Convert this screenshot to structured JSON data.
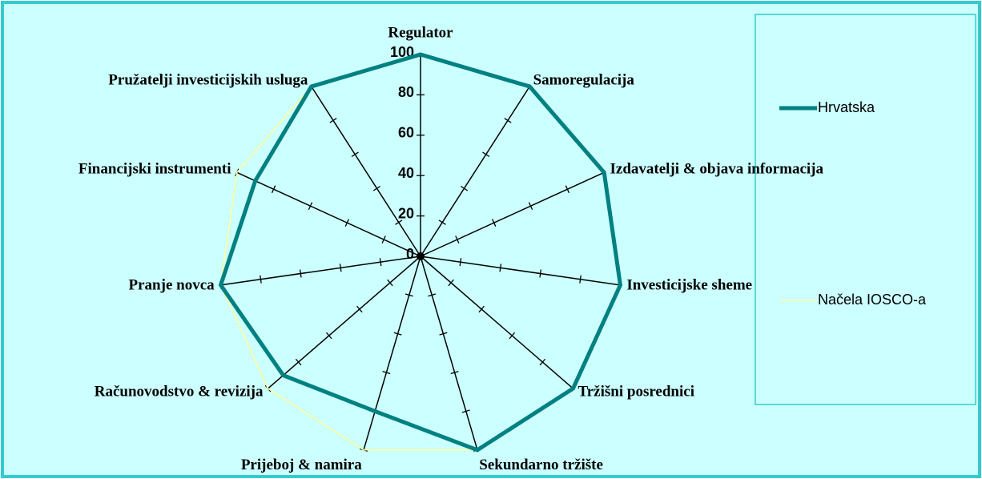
{
  "chart_data": {
    "type": "radar",
    "categories": [
      "Regulator",
      "Samoregulacija",
      "Izdavatelji & objava informacija",
      "Investicijske sheme",
      "Tržišni posrednici",
      "Sekundarno tržište",
      "Prijeboj & namira",
      "Računovodstvo & revizija",
      "Pranje novca",
      "Financijski instrumenti",
      "Pružatelji investicijskih usluga"
    ],
    "series": [
      {
        "name": "Hrvatska",
        "color": "#008080",
        "values": [
          100,
          100,
          100,
          100,
          100,
          100,
          80,
          90,
          100,
          90,
          100
        ]
      },
      {
        "name": "Načela IOSCO-a",
        "color": "#ffff99",
        "values": [
          100,
          100,
          100,
          100,
          100,
          100,
          100,
          100,
          100,
          100,
          100
        ]
      }
    ],
    "ylim": [
      0,
      100
    ],
    "yticks": [
      0,
      20,
      40,
      60,
      80,
      100
    ],
    "legend": "right"
  }
}
